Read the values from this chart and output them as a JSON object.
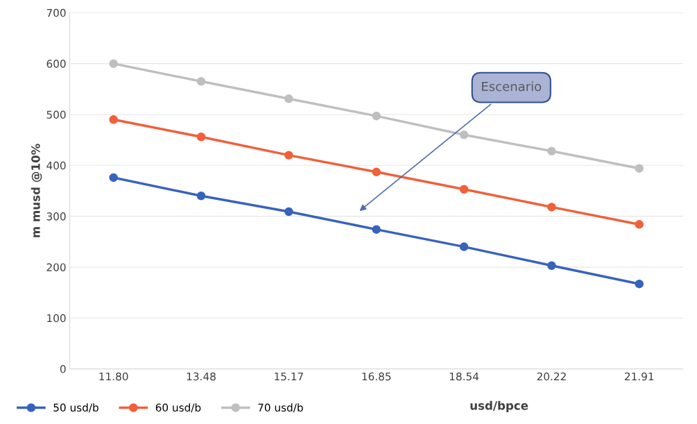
{
  "chart_data": {
    "type": "line",
    "xlabel": "usd/bpce",
    "ylabel": "m musd @10%",
    "categories": [
      "11.80",
      "13.48",
      "15.17",
      "16.85",
      "18.54",
      "20.22",
      "21.91"
    ],
    "series": [
      {
        "name": "50 usd/b",
        "color": "#3763bd",
        "values": [
          376,
          340,
          309,
          274,
          240,
          203,
          167
        ]
      },
      {
        "name": "60 usd/b",
        "color": "#f0603a",
        "values": [
          490,
          456,
          420,
          387,
          353,
          318,
          284
        ]
      },
      {
        "name": "70 usd/b",
        "color": "#bfbfbf",
        "values": [
          600,
          565,
          531,
          497,
          460,
          428,
          394
        ]
      }
    ],
    "ylim": [
      0,
      700
    ],
    "yticks": [
      0,
      100,
      200,
      300,
      400,
      500,
      600,
      700
    ],
    "grid": "y",
    "legend": "bottom left",
    "marker": "circle",
    "line_style": "solid",
    "annotations": [
      "Escenario"
    ]
  }
}
